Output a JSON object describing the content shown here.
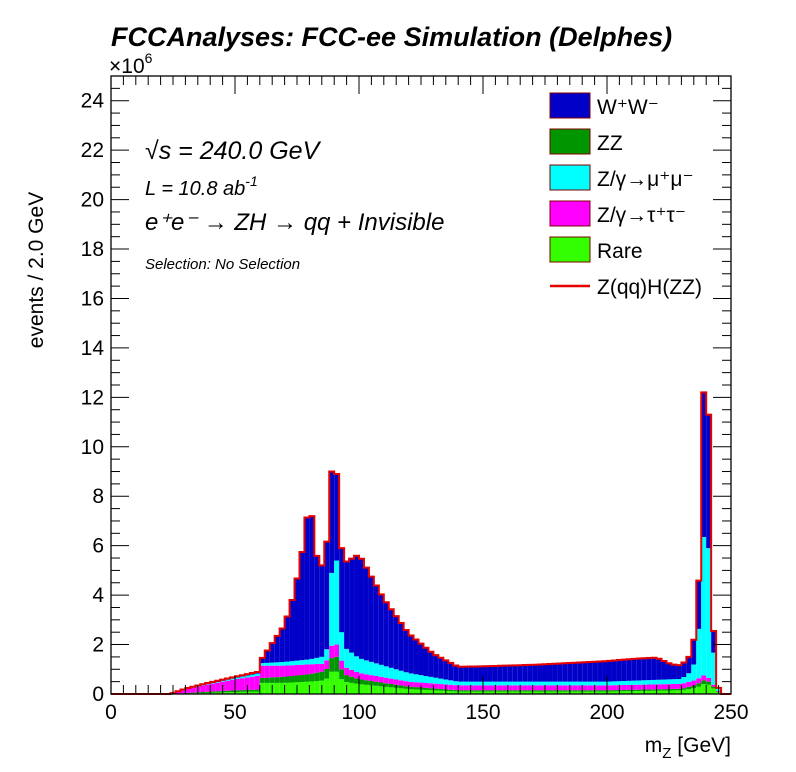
{
  "chart_data": {
    "type": "stacked-histogram",
    "title": "FCCAnalyses: FCC-ee Simulation (Delphes)",
    "xlabel_main": "m",
    "xlabel_sub": "Z",
    "xlabel_unit": " [GeV]",
    "ylabel": "events / 2.0 GeV",
    "y_multiplier_base": "×10",
    "y_multiplier_exp": "6",
    "xlim": [
      0,
      250
    ],
    "ylim": [
      0,
      25
    ],
    "bin_width": 2.0,
    "x_ticks": [
      0,
      50,
      100,
      150,
      200,
      250
    ],
    "y_ticks": [
      0,
      2,
      4,
      6,
      8,
      10,
      12,
      14,
      16,
      18,
      20,
      22,
      24
    ],
    "annotations": {
      "sqrt_s_prefix": "√",
      "sqrt_s_var": "s",
      "sqrt_s_value": " = 240.0 GeV",
      "lumi_text": "L = 10.8 ab",
      "lumi_exp": "-1",
      "process": "e⁺e⁻ → ZH → qq + Invisible",
      "selection": "Selection: No Selection"
    },
    "legend": [
      {
        "key": "ww",
        "label": "W⁺W⁻",
        "color": "#0000c8",
        "style": "box"
      },
      {
        "key": "zz",
        "label": "ZZ",
        "color": "#009600",
        "style": "box"
      },
      {
        "key": "zmumu",
        "label": "Z/γ→μ⁺μ⁻",
        "color": "#00ffff",
        "style": "box"
      },
      {
        "key": "ztautau",
        "label": "Z/γ→τ⁺τ⁻",
        "color": "#ff00ff",
        "style": "box"
      },
      {
        "key": "rare",
        "label": "Rare",
        "color": "#33ff00",
        "style": "box"
      },
      {
        "key": "signal",
        "label": "Z(qq)H(ZZ)",
        "color": "#e60000",
        "style": "line"
      }
    ],
    "anchors": {
      "rare": [
        [
          0,
          0
        ],
        [
          24,
          0
        ],
        [
          30,
          0.02
        ],
        [
          40,
          0.05
        ],
        [
          50,
          0.08
        ],
        [
          59,
          0.1
        ],
        [
          60,
          0.45
        ],
        [
          70,
          0.45
        ],
        [
          80,
          0.5
        ],
        [
          86,
          0.55
        ],
        [
          88,
          0.7
        ],
        [
          90,
          1.1
        ],
        [
          92,
          0.7
        ],
        [
          94,
          0.5
        ],
        [
          100,
          0.4
        ],
        [
          120,
          0.2
        ],
        [
          140,
          0.1
        ],
        [
          200,
          0.1
        ],
        [
          230,
          0.15
        ],
        [
          236,
          0.25
        ],
        [
          238,
          0.35
        ],
        [
          240,
          0.45
        ],
        [
          242,
          0.3
        ],
        [
          244,
          0.15
        ],
        [
          246,
          0
        ],
        [
          250,
          0
        ]
      ],
      "zz": [
        [
          0,
          0
        ],
        [
          24,
          0
        ],
        [
          40,
          0.05
        ],
        [
          60,
          0.08
        ],
        [
          61,
          0.2
        ],
        [
          80,
          0.3
        ],
        [
          88,
          0.4
        ],
        [
          90,
          0.7
        ],
        [
          92,
          0.5
        ],
        [
          94,
          0.3
        ],
        [
          100,
          0.2
        ],
        [
          120,
          0.1
        ],
        [
          140,
          0.05
        ],
        [
          200,
          0.05
        ],
        [
          230,
          0.06
        ],
        [
          236,
          0.12
        ],
        [
          238,
          0.15
        ],
        [
          240,
          0.15
        ],
        [
          242,
          0.1
        ],
        [
          244,
          0.05
        ],
        [
          246,
          0
        ],
        [
          250,
          0
        ]
      ],
      "ztautau": [
        [
          0,
          0
        ],
        [
          24,
          0
        ],
        [
          30,
          0.15
        ],
        [
          40,
          0.3
        ],
        [
          50,
          0.45
        ],
        [
          59,
          0.55
        ],
        [
          60,
          0.5
        ],
        [
          70,
          0.45
        ],
        [
          80,
          0.4
        ],
        [
          86,
          0.3
        ],
        [
          88,
          0.4
        ],
        [
          90,
          0.6
        ],
        [
          92,
          0.4
        ],
        [
          94,
          0.3
        ],
        [
          100,
          0.25
        ],
        [
          120,
          0.2
        ],
        [
          140,
          0.2
        ],
        [
          200,
          0.2
        ],
        [
          230,
          0.2
        ],
        [
          236,
          0.2
        ],
        [
          238,
          0.2
        ],
        [
          240,
          0.2
        ],
        [
          242,
          0.1
        ],
        [
          244,
          0.05
        ],
        [
          246,
          0
        ],
        [
          250,
          0
        ]
      ],
      "zmumu": [
        [
          0,
          0
        ],
        [
          24,
          0
        ],
        [
          30,
          0
        ],
        [
          40,
          0.02
        ],
        [
          50,
          0.05
        ],
        [
          60,
          0.1
        ],
        [
          70,
          0.15
        ],
        [
          80,
          0.2
        ],
        [
          86,
          0.3
        ],
        [
          88,
          0.6
        ],
        [
          90,
          5.3
        ],
        [
          92,
          1.5
        ],
        [
          94,
          0.8
        ],
        [
          100,
          0.6
        ],
        [
          120,
          0.35
        ],
        [
          140,
          0.15
        ],
        [
          200,
          0.15
        ],
        [
          230,
          0.2
        ],
        [
          234,
          0.4
        ],
        [
          236,
          0.9
        ],
        [
          238,
          3.1
        ],
        [
          240,
          8.1
        ],
        [
          242,
          2.4
        ],
        [
          244,
          0.2
        ],
        [
          246,
          0
        ],
        [
          250,
          0
        ]
      ],
      "ww": [
        [
          0,
          0
        ],
        [
          24,
          0
        ],
        [
          30,
          0.03
        ],
        [
          40,
          0.05
        ],
        [
          50,
          0.05
        ],
        [
          60,
          0.07
        ],
        [
          70,
          1.5
        ],
        [
          74,
          2.8
        ],
        [
          78,
          4.9
        ],
        [
          80,
          6.6
        ],
        [
          84,
          3.3
        ],
        [
          86,
          4.1
        ],
        [
          88,
          4.6
        ],
        [
          90,
          3.6
        ],
        [
          92,
          3.4
        ],
        [
          94,
          3.4
        ],
        [
          100,
          4.2
        ],
        [
          110,
          2.7
        ],
        [
          120,
          1.6
        ],
        [
          130,
          0.95
        ],
        [
          140,
          0.6
        ],
        [
          150,
          0.62
        ],
        [
          170,
          0.68
        ],
        [
          190,
          0.78
        ],
        [
          210,
          0.88
        ],
        [
          220,
          0.9
        ],
        [
          226,
          0.6
        ],
        [
          230,
          0.55
        ],
        [
          234,
          0.7
        ],
        [
          236,
          1.3
        ],
        [
          238,
          2.6
        ],
        [
          240,
          9.1
        ],
        [
          242,
          1.7
        ],
        [
          244,
          0.05
        ],
        [
          246,
          0
        ],
        [
          250,
          0
        ]
      ]
    }
  }
}
